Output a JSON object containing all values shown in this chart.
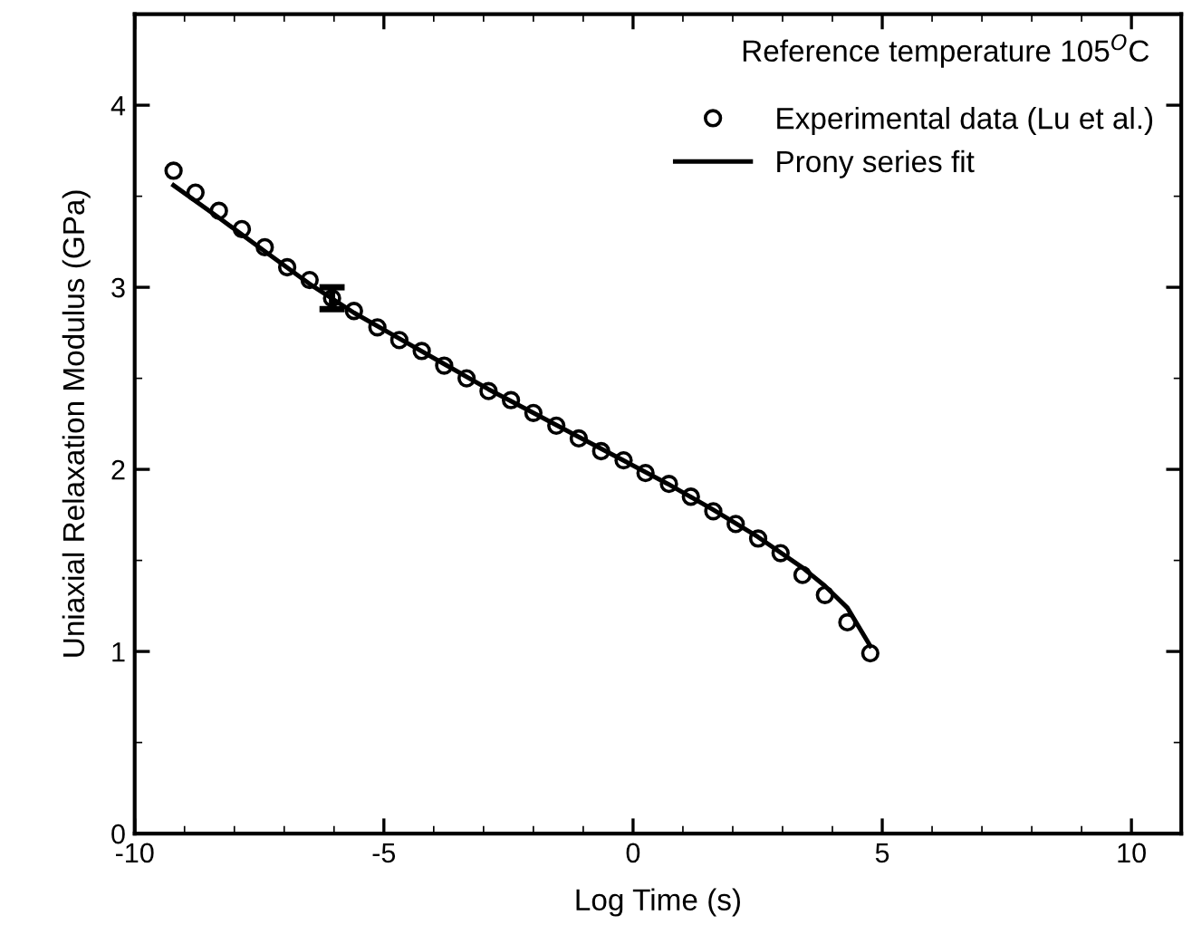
{
  "chart_data": {
    "type": "scatter",
    "xlabel": "Log Time (s)",
    "ylabel": "Uniaxial Relaxation Modulus (GPa)",
    "annotations": [
      "Reference temperature 105$^{O}$C"
    ],
    "xlim": [
      -10,
      11
    ],
    "xticks": [
      -10,
      -5,
      0,
      5,
      10
    ],
    "ylim": [
      0,
      4.5
    ],
    "yticks": [
      0,
      1,
      2,
      3,
      4
    ],
    "grid": false,
    "legend": "top right",
    "series": [
      {
        "name": "Experimental data (Lu et al.)",
        "marker": "circle",
        "color": "#000000",
        "x": [
          -9.22,
          -8.78,
          -8.31,
          -7.85,
          -7.39,
          -6.94,
          -6.49,
          -6.04,
          -5.6,
          -5.13,
          -4.69,
          -4.24,
          -3.79,
          -3.34,
          -2.9,
          -2.45,
          -2.0,
          -1.54,
          -1.09,
          -0.64,
          -0.19,
          0.25,
          0.72,
          1.16,
          1.61,
          2.06,
          2.51,
          2.96,
          3.4,
          3.85,
          4.3,
          4.76
        ],
        "values": [
          3.64,
          3.52,
          3.42,
          3.32,
          3.22,
          3.11,
          3.04,
          2.94,
          2.87,
          2.78,
          2.71,
          2.65,
          2.57,
          2.5,
          2.43,
          2.38,
          2.31,
          2.24,
          2.17,
          2.1,
          2.05,
          1.98,
          1.92,
          1.85,
          1.77,
          1.7,
          1.62,
          1.54,
          1.42,
          1.31,
          1.16,
          0.99
        ],
        "errors": [
          null,
          null,
          null,
          null,
          null,
          null,
          null,
          [
            2.88,
            3.0
          ],
          null,
          null,
          null,
          null,
          null,
          null,
          null,
          null,
          null,
          null,
          null,
          null,
          null,
          null,
          null,
          null,
          null,
          null,
          null,
          null,
          null,
          null,
          null,
          null
        ]
      },
      {
        "name": "Prony series fit",
        "type": "line",
        "line_style": "solid",
        "color": "#000000",
        "x": [
          -9.22,
          -8.3,
          -7.4,
          -6.5,
          -5.6,
          -4.7,
          -3.8,
          -2.9,
          -2.0,
          -1.1,
          -0.2,
          0.7,
          1.6,
          2.5,
          3.4,
          3.85,
          4.3,
          4.76
        ],
        "values": [
          3.56,
          3.38,
          3.2,
          3.02,
          2.86,
          2.72,
          2.58,
          2.44,
          2.31,
          2.18,
          2.05,
          1.92,
          1.78,
          1.63,
          1.46,
          1.36,
          1.24,
          1.03
        ]
      }
    ]
  }
}
